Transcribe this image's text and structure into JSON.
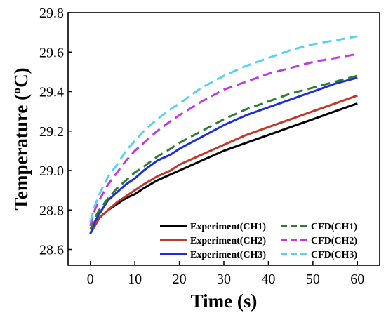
{
  "chart_data": {
    "type": "line",
    "title": "",
    "xlabel": "Time (s)",
    "ylabel": "Temperature (ºC)",
    "xlim": [
      -5,
      65
    ],
    "ylim": [
      28.52,
      29.8
    ],
    "xticks": [
      0,
      10,
      20,
      30,
      40,
      50,
      60
    ],
    "xtick_labels": [
      "0",
      "10",
      "20",
      "30",
      "40",
      "50",
      "60"
    ],
    "yticks": [
      28.6,
      28.8,
      29.0,
      29.2,
      29.4,
      29.6,
      29.8
    ],
    "ytick_labels": [
      "28.6",
      "28.8",
      "29.0",
      "29.2",
      "29.4",
      "29.6",
      "29.8"
    ],
    "grid": false,
    "legend_position": "bottom-right",
    "series": [
      {
        "name": "Experiment(CH1)",
        "color": "#000000",
        "dash": "solid",
        "x": [
          0,
          1,
          2,
          4,
          6,
          8,
          10,
          12,
          15,
          18,
          20,
          25,
          30,
          35,
          40,
          45,
          50,
          55,
          60
        ],
        "y": [
          28.68,
          28.72,
          28.76,
          28.8,
          28.83,
          28.86,
          28.88,
          28.91,
          28.95,
          28.98,
          29.0,
          29.05,
          29.1,
          29.14,
          29.18,
          29.22,
          29.26,
          29.3,
          29.34
        ]
      },
      {
        "name": "Experiment(CH2)",
        "color": "#c0392b",
        "dash": "solid",
        "x": [
          0,
          1,
          2,
          4,
          6,
          8,
          10,
          12,
          15,
          18,
          20,
          25,
          30,
          35,
          40,
          45,
          50,
          55,
          60
        ],
        "y": [
          28.68,
          28.72,
          28.76,
          28.8,
          28.84,
          28.87,
          28.9,
          28.93,
          28.97,
          29.0,
          29.03,
          29.08,
          29.13,
          29.18,
          29.22,
          29.26,
          29.3,
          29.34,
          29.38
        ]
      },
      {
        "name": "Experiment(CH3)",
        "color": "#1f2fd8",
        "dash": "solid",
        "x": [
          0,
          1,
          2,
          4,
          6,
          8,
          10,
          12,
          15,
          18,
          20,
          25,
          30,
          35,
          40,
          45,
          50,
          55,
          60
        ],
        "y": [
          28.68,
          28.74,
          28.78,
          28.85,
          28.89,
          28.93,
          28.96,
          29.0,
          29.05,
          29.08,
          29.11,
          29.17,
          29.23,
          29.28,
          29.32,
          29.36,
          29.4,
          29.44,
          29.47
        ]
      },
      {
        "name": "CFD(CH1)",
        "color": "#2e7d32",
        "dash": "dashed",
        "x": [
          0,
          1,
          2,
          4,
          6,
          8,
          10,
          12,
          15,
          18,
          20,
          25,
          30,
          35,
          40,
          45,
          50,
          55,
          60
        ],
        "y": [
          28.7,
          28.76,
          28.8,
          28.86,
          28.91,
          28.95,
          28.99,
          29.02,
          29.07,
          29.11,
          29.14,
          29.2,
          29.26,
          29.31,
          29.35,
          29.39,
          29.42,
          29.45,
          29.48
        ]
      },
      {
        "name": "CFD(CH2)",
        "color": "#c039e6",
        "dash": "dashed",
        "x": [
          0,
          1,
          2,
          4,
          6,
          8,
          10,
          12,
          15,
          18,
          20,
          25,
          30,
          35,
          40,
          45,
          50,
          55,
          60
        ],
        "y": [
          28.72,
          28.8,
          28.85,
          28.93,
          28.99,
          29.05,
          29.1,
          29.14,
          29.2,
          29.25,
          29.28,
          29.35,
          29.41,
          29.45,
          29.49,
          29.52,
          29.55,
          29.57,
          29.59
        ]
      },
      {
        "name": "CFD(CH3)",
        "color": "#55d3ef",
        "dash": "dashed",
        "x": [
          0,
          1,
          2,
          4,
          6,
          8,
          10,
          12,
          15,
          18,
          20,
          25,
          30,
          35,
          40,
          45,
          50,
          55,
          60
        ],
        "y": [
          28.74,
          28.82,
          28.88,
          28.97,
          29.03,
          29.1,
          29.15,
          29.2,
          29.26,
          29.31,
          29.34,
          29.42,
          29.48,
          29.53,
          29.57,
          29.61,
          29.64,
          29.66,
          29.68
        ]
      }
    ],
    "legend_order": [
      0,
      3,
      1,
      4,
      2,
      5
    ]
  }
}
